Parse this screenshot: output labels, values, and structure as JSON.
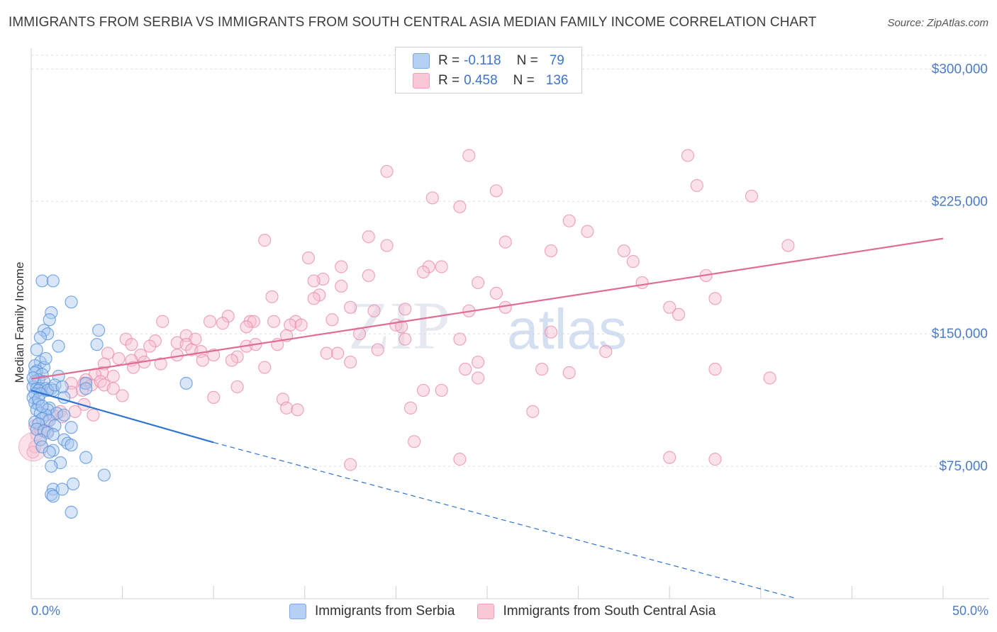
{
  "title": "IMMIGRANTS FROM SERBIA VS IMMIGRANTS FROM SOUTH CENTRAL ASIA MEDIAN FAMILY INCOME CORRELATION CHART",
  "source": "Source: ZipAtlas.com",
  "watermark": {
    "zip": "ZIP",
    "atlas": "atlas"
  },
  "legend": {
    "serbia": {
      "r_label": "R =",
      "r_value": "-0.118",
      "n_label": "N =",
      "n_value": "79"
    },
    "sca": {
      "r_label": "R =",
      "r_value": "0.458",
      "n_label": "N =",
      "n_value": "136"
    }
  },
  "bottom_legend": {
    "serbia": "Immigrants from Serbia",
    "sca": "Immigrants from South Central Asia"
  },
  "colors": {
    "serbia_fill": "#a9c8f0",
    "serbia_stroke": "#5b95dd",
    "serbia_line": "#2f73d0",
    "sca_fill": "#f6bfd0",
    "sca_stroke": "#e98aa8",
    "sca_line": "#e06c94",
    "axis_text": "#4a7cc9",
    "grid": "#dddddd"
  },
  "chart_data": {
    "type": "scatter",
    "title": "IMMIGRANTS FROM SERBIA VS IMMIGRANTS FROM SOUTH CENTRAL ASIA MEDIAN FAMILY INCOME CORRELATION CHART",
    "xlabel": "",
    "ylabel": "Median Family Income",
    "xlim": [
      0,
      50
    ],
    "ylim": [
      0,
      315000
    ],
    "x_tick_labels": [
      "0.0%",
      "50.0%"
    ],
    "y_ticks": [
      75000,
      150000,
      225000,
      300000
    ],
    "y_tick_labels": [
      "$75,000",
      "$150,000",
      "$225,000",
      "$300,000"
    ],
    "grid": true,
    "series": [
      {
        "name": "Immigrants from Serbia",
        "r": -0.118,
        "n": 79,
        "trend": {
          "x0": 0,
          "y0": 118000,
          "x1": 10,
          "y1": 88500,
          "dashed_to_x": 42,
          "dashed_to_y": 0
        },
        "points": [
          [
            0.6,
            180000
          ],
          [
            1.2,
            180000
          ],
          [
            2.2,
            168000
          ],
          [
            1.1,
            162000
          ],
          [
            1.0,
            158000
          ],
          [
            0.7,
            152000
          ],
          [
            0.9,
            150000
          ],
          [
            0.5,
            148000
          ],
          [
            3.7,
            152000
          ],
          [
            1.5,
            143000
          ],
          [
            3.6,
            144000
          ],
          [
            0.3,
            141000
          ],
          [
            0.5,
            134000
          ],
          [
            0.2,
            132000
          ],
          [
            0.7,
            131000
          ],
          [
            0.3,
            129000
          ],
          [
            0.2,
            128000
          ],
          [
            0.6,
            127000
          ],
          [
            1.5,
            126000
          ],
          [
            0.4,
            124000
          ],
          [
            0.2,
            123000
          ],
          [
            0.7,
            123000
          ],
          [
            3.0,
            122000
          ],
          [
            8.5,
            122000
          ],
          [
            0.1,
            120000
          ],
          [
            0.3,
            119000
          ],
          [
            0.5,
            119000
          ],
          [
            0.8,
            119000
          ],
          [
            1.1,
            119000
          ],
          [
            1.2,
            118000
          ],
          [
            0.4,
            118000
          ],
          [
            0.9,
            118000
          ],
          [
            3.0,
            119000
          ],
          [
            0.2,
            116000
          ],
          [
            0.5,
            116000
          ],
          [
            1.8,
            114000
          ],
          [
            0.1,
            114000
          ],
          [
            0.2,
            111000
          ],
          [
            0.4,
            110000
          ],
          [
            1.0,
            108000
          ],
          [
            0.3,
            107000
          ],
          [
            0.9,
            107000
          ],
          [
            0.5,
            105000
          ],
          [
            1.4,
            105000
          ],
          [
            0.8,
            104000
          ],
          [
            1.8,
            104000
          ],
          [
            0.6,
            102000
          ],
          [
            1.0,
            101000
          ],
          [
            0.2,
            100000
          ],
          [
            0.4,
            99000
          ],
          [
            1.3,
            98000
          ],
          [
            2.2,
            97000
          ],
          [
            0.3,
            96000
          ],
          [
            0.7,
            95000
          ],
          [
            0.9,
            94000
          ],
          [
            1.2,
            93000
          ],
          [
            0.5,
            90000
          ],
          [
            1.8,
            90000
          ],
          [
            2.0,
            88000
          ],
          [
            2.2,
            87000
          ],
          [
            0.6,
            86000
          ],
          [
            1.2,
            84000
          ],
          [
            1.0,
            83000
          ],
          [
            3.0,
            80000
          ],
          [
            1.6,
            77000
          ],
          [
            1.1,
            75000
          ],
          [
            4.0,
            70000
          ],
          [
            2.3,
            65000
          ],
          [
            1.2,
            62000
          ],
          [
            1.7,
            62000
          ],
          [
            1.1,
            59000
          ],
          [
            1.2,
            58000
          ],
          [
            2.2,
            49000
          ],
          [
            0.1,
            125000
          ],
          [
            0.8,
            136000
          ],
          [
            1.3,
            121000
          ],
          [
            0.4,
            113000
          ],
          [
            1.7,
            120000
          ],
          [
            0.6,
            109000
          ]
        ]
      },
      {
        "name": "Immigrants from South Central Asia",
        "r": 0.458,
        "n": 136,
        "trend": {
          "x0": 0,
          "y0": 124500,
          "x1": 50,
          "y1": 204000
        },
        "points": [
          [
            24,
            251000
          ],
          [
            36,
            251000
          ],
          [
            19.5,
            242000
          ],
          [
            36.5,
            234000
          ],
          [
            25.5,
            231000
          ],
          [
            39.5,
            228000
          ],
          [
            22,
            227000
          ],
          [
            23.5,
            222000
          ],
          [
            29.5,
            214000
          ],
          [
            30.5,
            208000
          ],
          [
            18.5,
            205000
          ],
          [
            12.8,
            203000
          ],
          [
            26,
            202000
          ],
          [
            19.5,
            200000
          ],
          [
            41.5,
            200000
          ],
          [
            28.5,
            197000
          ],
          [
            32.5,
            197000
          ],
          [
            15.2,
            193000
          ],
          [
            33,
            191000
          ],
          [
            17,
            188000
          ],
          [
            21.8,
            188000
          ],
          [
            22.5,
            188000
          ],
          [
            21.5,
            185000
          ],
          [
            18.5,
            183000
          ],
          [
            37,
            183000
          ],
          [
            16,
            181000
          ],
          [
            15.5,
            180000
          ],
          [
            24.5,
            179000
          ],
          [
            33.5,
            179000
          ],
          [
            17,
            177000
          ],
          [
            25.5,
            173000
          ],
          [
            15.8,
            172000
          ],
          [
            13.2,
            171000
          ],
          [
            15.5,
            170000
          ],
          [
            37.5,
            170000
          ],
          [
            17.5,
            165000
          ],
          [
            20.5,
            164000
          ],
          [
            24,
            163000
          ],
          [
            26,
            165000
          ],
          [
            35,
            165000
          ],
          [
            18.8,
            163000
          ],
          [
            35.5,
            161000
          ],
          [
            10.8,
            160000
          ],
          [
            16.5,
            158000
          ],
          [
            7.2,
            157000
          ],
          [
            9.8,
            157000
          ],
          [
            12,
            157000
          ],
          [
            12.2,
            157000
          ],
          [
            13.3,
            157000
          ],
          [
            14.5,
            157000
          ],
          [
            10.5,
            156000
          ],
          [
            14.2,
            155000
          ],
          [
            14.8,
            155000
          ],
          [
            20,
            155000
          ],
          [
            11.8,
            154000
          ],
          [
            20.3,
            154000
          ],
          [
            28.5,
            151000
          ],
          [
            18,
            150000
          ],
          [
            8.5,
            149000
          ],
          [
            14,
            149000
          ],
          [
            5.2,
            147000
          ],
          [
            9,
            147000
          ],
          [
            20.5,
            147000
          ],
          [
            23.5,
            147000
          ],
          [
            6.8,
            146000
          ],
          [
            8,
            145000
          ],
          [
            8.5,
            144000
          ],
          [
            5.5,
            144000
          ],
          [
            11.8,
            143000
          ],
          [
            12.3,
            144000
          ],
          [
            13.5,
            144000
          ],
          [
            6.5,
            143000
          ],
          [
            8.8,
            141000
          ],
          [
            9.3,
            140000
          ],
          [
            19,
            141000
          ],
          [
            31.5,
            140000
          ],
          [
            4.2,
            139000
          ],
          [
            6,
            138000
          ],
          [
            8,
            138000
          ],
          [
            10,
            138000
          ],
          [
            11.3,
            137000
          ],
          [
            16.2,
            139000
          ],
          [
            16.8,
            139000
          ],
          [
            4.8,
            136000
          ],
          [
            5.5,
            135000
          ],
          [
            6.2,
            134000
          ],
          [
            7.1,
            133000
          ],
          [
            9.4,
            135000
          ],
          [
            11,
            135000
          ],
          [
            17.5,
            134000
          ],
          [
            24.5,
            134000
          ],
          [
            4,
            133000
          ],
          [
            5.6,
            131000
          ],
          [
            12.8,
            131000
          ],
          [
            23.8,
            130000
          ],
          [
            28,
            130000
          ],
          [
            37.5,
            130000
          ],
          [
            29.5,
            128000
          ],
          [
            3.9,
            128000
          ],
          [
            3.5,
            127000
          ],
          [
            4.5,
            126000
          ],
          [
            3.0,
            124000
          ],
          [
            2.9,
            122000
          ],
          [
            3.3,
            121000
          ],
          [
            2.2,
            122000
          ],
          [
            24.5,
            125000
          ],
          [
            40.5,
            125000
          ],
          [
            3.8,
            123000
          ],
          [
            4,
            121000
          ],
          [
            11.3,
            120000
          ],
          [
            4.5,
            119000
          ],
          [
            2.8,
            118000
          ],
          [
            2.2,
            117000
          ],
          [
            21.5,
            118000
          ],
          [
            22.5,
            118000
          ],
          [
            5,
            115000
          ],
          [
            10,
            114000
          ],
          [
            13.8,
            113000
          ],
          [
            2.9,
            110000
          ],
          [
            14,
            108000
          ],
          [
            14.6,
            107000
          ],
          [
            20.8,
            108000
          ],
          [
            27.5,
            106000
          ],
          [
            1.6,
            106000
          ],
          [
            2.4,
            106000
          ],
          [
            1.2,
            104000
          ],
          [
            3.4,
            104000
          ],
          [
            1.7,
            103000
          ],
          [
            0.9,
            101000
          ],
          [
            0.2,
            98000
          ],
          [
            0.5,
            96000
          ],
          [
            0.9,
            95000
          ],
          [
            0.3,
            93000
          ],
          [
            21,
            89000
          ],
          [
            0.2,
            86000
          ],
          [
            0.1,
            83000
          ],
          [
            23.5,
            79000
          ],
          [
            35,
            80000
          ],
          [
            37.5,
            79000
          ],
          [
            17.5,
            76000
          ]
        ]
      }
    ]
  }
}
